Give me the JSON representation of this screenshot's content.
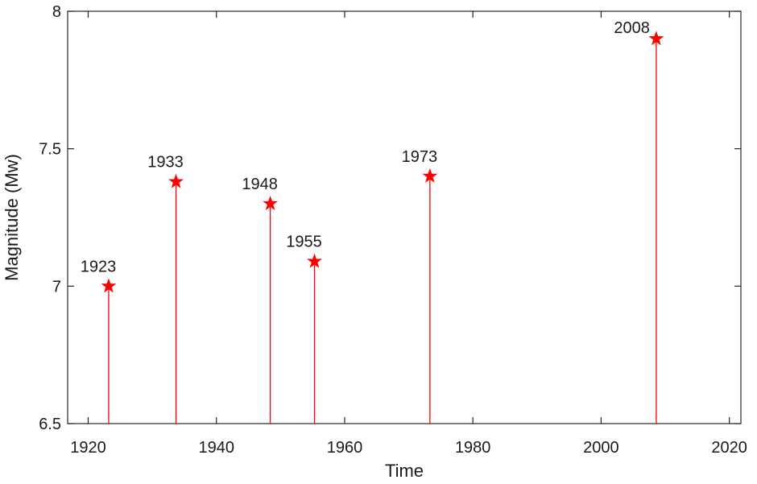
{
  "chart_data": {
    "type": "stem",
    "xlabel": "Time",
    "ylabel": "Magnitude (Mw)",
    "x": [
      1923.2,
      1933.7,
      1948.4,
      1955.3,
      1973.3,
      2008.6
    ],
    "values": [
      7.0,
      7.38,
      7.3,
      7.09,
      7.4,
      7.9
    ],
    "point_labels": [
      "1923",
      "1933",
      "1948",
      "1955",
      "1973",
      "2008"
    ],
    "color": "#ff0000",
    "xlim": [
      1916.8,
      2021.8
    ],
    "xticks": [
      1920,
      1940,
      1960,
      1980,
      2000,
      2020
    ],
    "ylim": [
      6.5,
      8
    ],
    "yticks": [
      6.5,
      7,
      7.5,
      8
    ]
  }
}
